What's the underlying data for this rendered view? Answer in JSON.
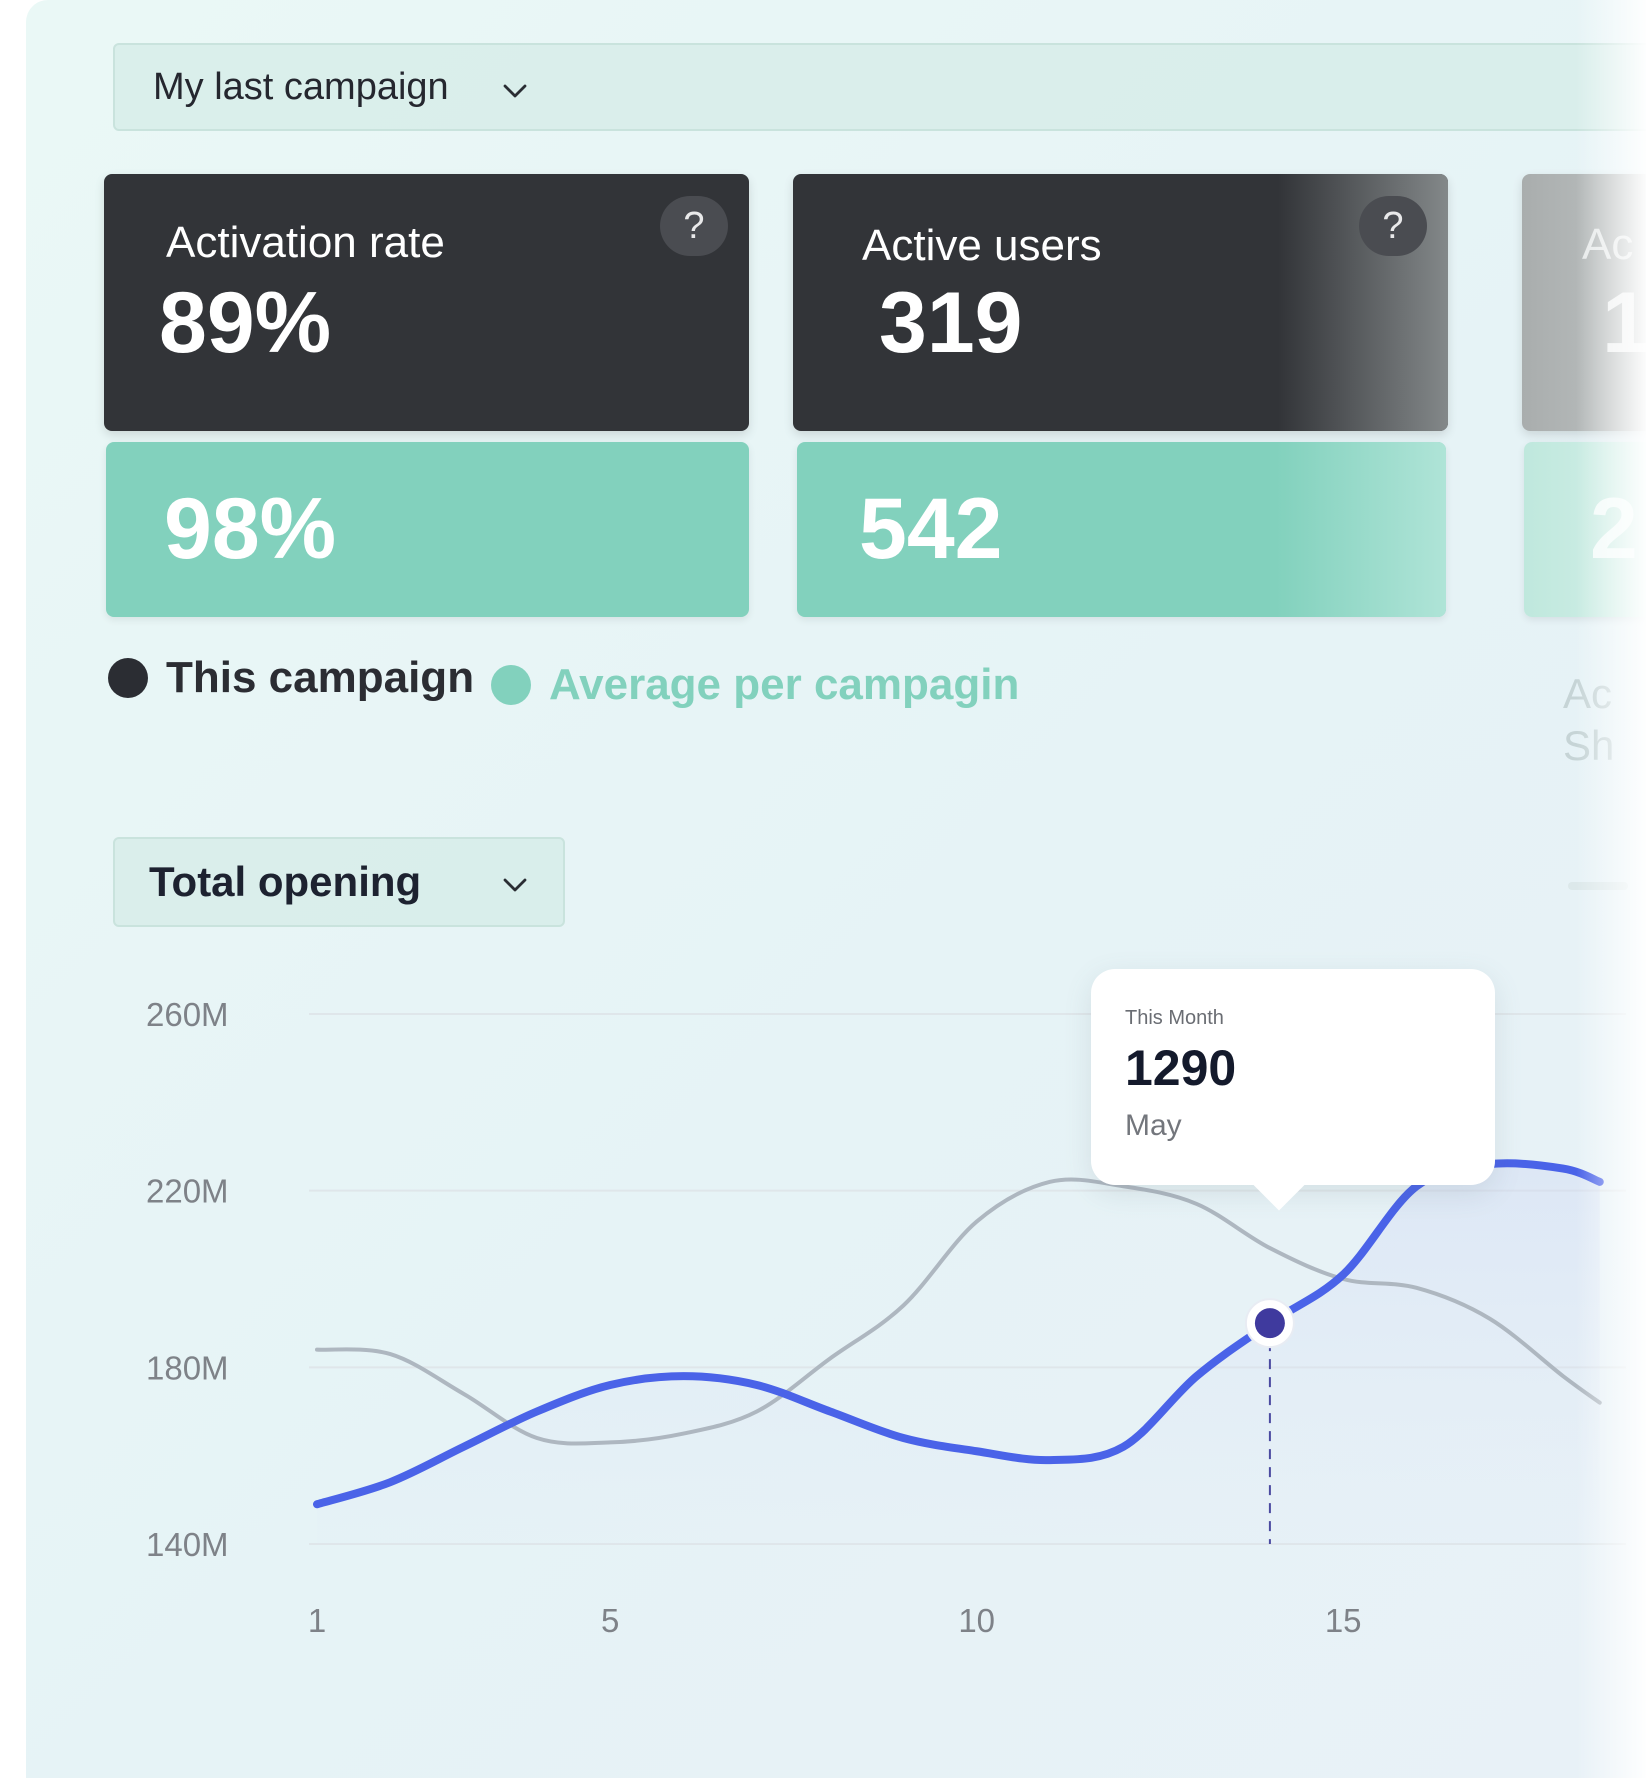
{
  "campaign_select": {
    "label": "My last campaign",
    "icon": "chevron-down-icon"
  },
  "metrics": [
    {
      "title": "Activation rate",
      "this_campaign": "89%",
      "average": "98%",
      "help": "?"
    },
    {
      "title": "Active users",
      "this_campaign": "319",
      "average": "542",
      "help": "?"
    },
    {
      "title": "Ac",
      "this_campaign": "1",
      "average": "2"
    }
  ],
  "legend": {
    "this_campaign": {
      "label": "This campaign",
      "color": "#2b2d33"
    },
    "average": {
      "label": "Average per campaign",
      "label_shown": "Average per campagin",
      "color": "#82d1bd"
    }
  },
  "side_text": {
    "line1": "Ac",
    "line2": "Sh"
  },
  "chart_select": {
    "label": "Total opening",
    "icon": "chevron-down-icon"
  },
  "tooltip": {
    "caption": "This Month",
    "value": "1290",
    "sub": "May"
  },
  "chart_data": {
    "type": "line",
    "title": "",
    "xlabel": "",
    "ylabel": "",
    "x_ticks": [
      1,
      5,
      10,
      15
    ],
    "y_ticks": [
      "140M",
      "180M",
      "220M",
      "260M"
    ],
    "xlim": [
      1,
      18.5
    ],
    "ylim": [
      140,
      260
    ],
    "grid": true,
    "highlight_x": 14,
    "series": [
      {
        "color": "#4a63e8",
        "x": [
          1,
          2,
          3,
          4,
          5,
          6,
          7,
          8,
          9,
          10,
          11,
          12,
          13,
          14,
          15,
          16,
          17,
          18,
          18.5
        ],
        "y": [
          149,
          154,
          162,
          170,
          176,
          178,
          176,
          170,
          164,
          161,
          159,
          162,
          178,
          190,
          201,
          221,
          226,
          225,
          222
        ]
      },
      {
        "color": "#aeb7c0",
        "x": [
          1,
          2,
          3,
          4,
          5,
          6,
          7,
          8,
          9,
          10,
          11,
          12,
          13,
          14,
          15,
          16,
          17,
          18,
          18.5
        ],
        "y": [
          184,
          183,
          174,
          164,
          163,
          165,
          170,
          182,
          194,
          213,
          222,
          221,
          217,
          207,
          200,
          198,
          191,
          178,
          172
        ]
      }
    ]
  }
}
